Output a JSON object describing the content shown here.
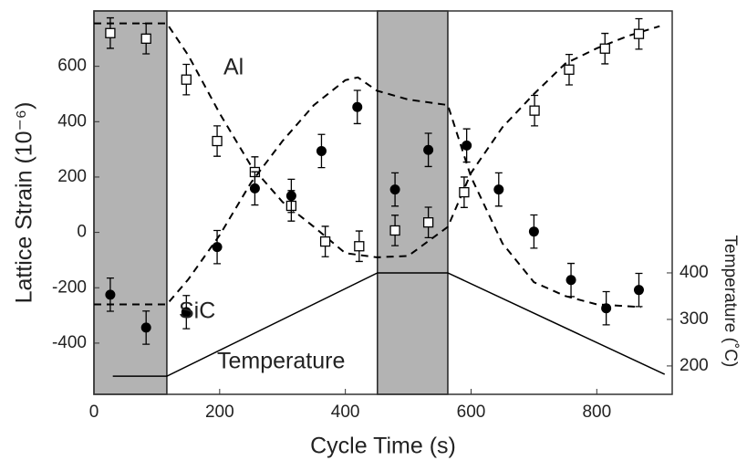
{
  "chart_data": {
    "type": "scatter",
    "x_label": "Cycle Time (s)",
    "y_label": "Lattice Strain (10⁻⁶)",
    "y2_label": "Temperature (˚C)",
    "xlim": [
      0,
      920
    ],
    "ylim": [
      -585,
      800
    ],
    "y2lim": [
      139,
      963
    ],
    "xticks": [
      0,
      200,
      400,
      600,
      800
    ],
    "yticks": [
      -400,
      -200,
      0,
      200,
      400,
      600
    ],
    "y2ticks": [
      200,
      300,
      400
    ],
    "shaded_regions": [
      [
        0,
        116
      ],
      [
        451,
        563
      ]
    ],
    "shade_color": "#b3b3b3",
    "series": [
      {
        "name": "Al",
        "marker": "open-square",
        "color": "#000000",
        "x": [
          26,
          83,
          147,
          196,
          256,
          314,
          368,
          422,
          479,
          532,
          589,
          701,
          756,
          813,
          867
        ],
        "values": [
          720,
          700,
          552,
          330,
          218,
          96,
          -33,
          -50,
          7,
          36,
          145,
          440,
          588,
          664,
          717
        ],
        "errors": [
          55,
          55,
          55,
          55,
          55,
          55,
          55,
          55,
          55,
          55,
          55,
          55,
          55,
          55,
          55
        ],
        "fit_x": [
          0,
          116,
          150,
          200,
          250,
          300,
          350,
          400,
          450,
          500,
          563,
          600,
          650,
          700,
          750,
          800,
          850,
          900
        ],
        "fit_values": [
          755,
          755,
          640,
          430,
          240,
          110,
          20,
          -75,
          -90,
          -85,
          20,
          215,
          380,
          500,
          610,
          665,
          710,
          745
        ]
      },
      {
        "name": "SiC",
        "marker": "filled-circle",
        "color": "#000000",
        "x": [
          26,
          83,
          147,
          196,
          256,
          314,
          362,
          419,
          479,
          532,
          593,
          644,
          700,
          759,
          815,
          867
        ],
        "values": [
          -225,
          -344,
          -288,
          -53,
          159,
          132,
          294,
          453,
          155,
          298,
          314,
          155,
          3,
          -172,
          -274,
          -208
        ],
        "errors": [
          60,
          60,
          60,
          60,
          60,
          60,
          60,
          60,
          60,
          60,
          60,
          60,
          60,
          60,
          60,
          60
        ],
        "fit_x": [
          0,
          116,
          150,
          200,
          250,
          300,
          350,
          400,
          420,
          450,
          500,
          563,
          600,
          650,
          700,
          750,
          800,
          870
        ],
        "fit_values": [
          -260,
          -260,
          -170,
          -10,
          180,
          330,
          460,
          550,
          560,
          512,
          480,
          460,
          200,
          -40,
          -180,
          -230,
          -260,
          -270
        ]
      },
      {
        "name": "Temperature",
        "type": "line",
        "axis": "y2",
        "color": "#000000",
        "x": [
          30,
          116,
          451,
          563,
          908
        ],
        "values": [
          178,
          178,
          400,
          400,
          182
        ]
      }
    ]
  }
}
